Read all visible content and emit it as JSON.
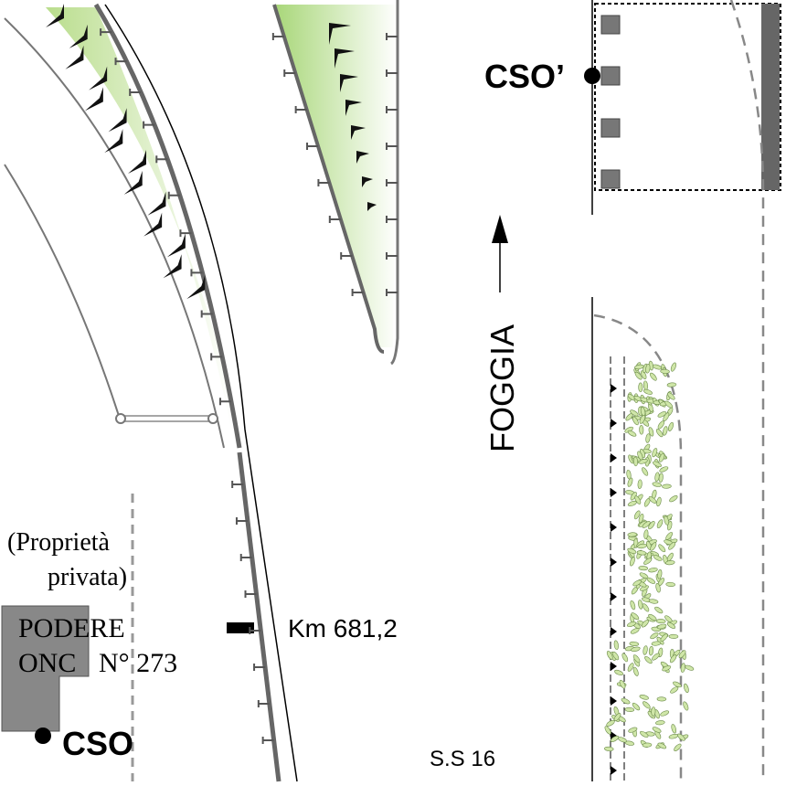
{
  "labels": {
    "property_line1": "(Proprietà",
    "property_line2": "privata)",
    "podere": "PODERE",
    "onc": "ONC",
    "number": "N° 273",
    "cso": "CSO",
    "cso_prime": "CSO’",
    "direction": "FOGGIA",
    "km": "Km 681,2",
    "road": "S.S 16"
  }
}
